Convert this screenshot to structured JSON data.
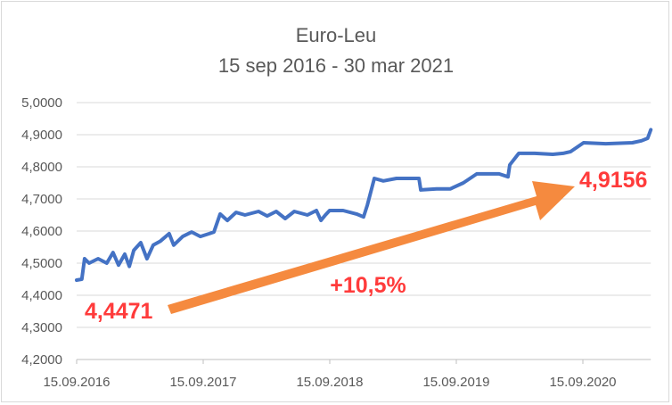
{
  "chart_data": {
    "type": "line",
    "title": "Euro-Leu",
    "subtitle": "15 sep 2016 - 30 mar 2021",
    "xlabel": "",
    "ylabel": "",
    "ylim": [
      4.2,
      5.0
    ],
    "xlim": [
      "2016-09-15",
      "2021-03-30"
    ],
    "grid": true,
    "legend": "none",
    "y_ticks": [
      "4,2000",
      "4,3000",
      "4,4000",
      "4,5000",
      "4,6000",
      "4,7000",
      "4,8000",
      "4,9000",
      "5,0000"
    ],
    "x_ticks": [
      "15.09.2016",
      "15.09.2017",
      "15.09.2018",
      "15.09.2019",
      "15.09.2020"
    ],
    "series": [
      {
        "color": "#4472C4",
        "points": [
          [
            "2016-09-15",
            4.4471
          ],
          [
            "2016-09-30",
            4.45
          ],
          [
            "2016-10-08",
            4.514
          ],
          [
            "2016-10-21",
            4.5
          ],
          [
            "2016-11-16",
            4.514
          ],
          [
            "2016-12-11",
            4.5
          ],
          [
            "2016-12-29",
            4.533
          ],
          [
            "2017-01-14",
            4.494
          ],
          [
            "2017-02-01",
            4.528
          ],
          [
            "2017-02-14",
            4.49
          ],
          [
            "2017-02-27",
            4.54
          ],
          [
            "2017-03-19",
            4.564
          ],
          [
            "2017-04-06",
            4.514
          ],
          [
            "2017-04-24",
            4.556
          ],
          [
            "2017-05-15",
            4.569
          ],
          [
            "2017-06-09",
            4.592
          ],
          [
            "2017-06-22",
            4.556
          ],
          [
            "2017-07-18",
            4.583
          ],
          [
            "2017-08-13",
            4.597
          ],
          [
            "2017-09-07",
            4.583
          ],
          [
            "2017-10-03",
            4.592
          ],
          [
            "2017-10-16",
            4.597
          ],
          [
            "2017-11-03",
            4.653
          ],
          [
            "2017-11-24",
            4.633
          ],
          [
            "2017-12-19",
            4.658
          ],
          [
            "2018-01-14",
            4.65
          ],
          [
            "2018-02-22",
            4.661
          ],
          [
            "2018-03-19",
            4.647
          ],
          [
            "2018-04-14",
            4.661
          ],
          [
            "2018-05-10",
            4.639
          ],
          [
            "2018-06-05",
            4.661
          ],
          [
            "2018-07-13",
            4.65
          ],
          [
            "2018-08-08",
            4.664
          ],
          [
            "2018-08-21",
            4.633
          ],
          [
            "2018-09-03",
            4.65
          ],
          [
            "2018-09-15",
            4.664
          ],
          [
            "2018-10-24",
            4.664
          ],
          [
            "2018-12-02",
            4.653
          ],
          [
            "2018-12-22",
            4.644
          ],
          [
            "2019-01-02",
            4.681
          ],
          [
            "2019-01-22",
            4.764
          ],
          [
            "2019-02-17",
            4.756
          ],
          [
            "2019-03-27",
            4.764
          ],
          [
            "2019-05-31",
            4.764
          ],
          [
            "2019-06-05",
            4.728
          ],
          [
            "2019-07-21",
            4.731
          ],
          [
            "2019-08-29",
            4.731
          ],
          [
            "2019-10-06",
            4.75
          ],
          [
            "2019-11-14",
            4.778
          ],
          [
            "2020-01-17",
            4.778
          ],
          [
            "2020-02-12",
            4.769
          ],
          [
            "2020-02-17",
            4.806
          ],
          [
            "2020-03-14",
            4.842
          ],
          [
            "2020-04-29",
            4.842
          ],
          [
            "2020-06-20",
            4.839
          ],
          [
            "2020-07-20",
            4.842
          ],
          [
            "2020-08-10",
            4.847
          ],
          [
            "2020-09-17",
            4.875
          ],
          [
            "2020-11-20",
            4.872
          ],
          [
            "2021-02-05",
            4.875
          ],
          [
            "2021-03-03",
            4.881
          ],
          [
            "2021-03-21",
            4.889
          ],
          [
            "2021-03-30",
            4.9156
          ]
        ]
      }
    ],
    "annotations": {
      "start_value": "4,4471",
      "end_value": "4,9156",
      "change": "+10,5%",
      "arrow_color": "#F58A3F",
      "text_color": "#FF3B3B"
    }
  }
}
